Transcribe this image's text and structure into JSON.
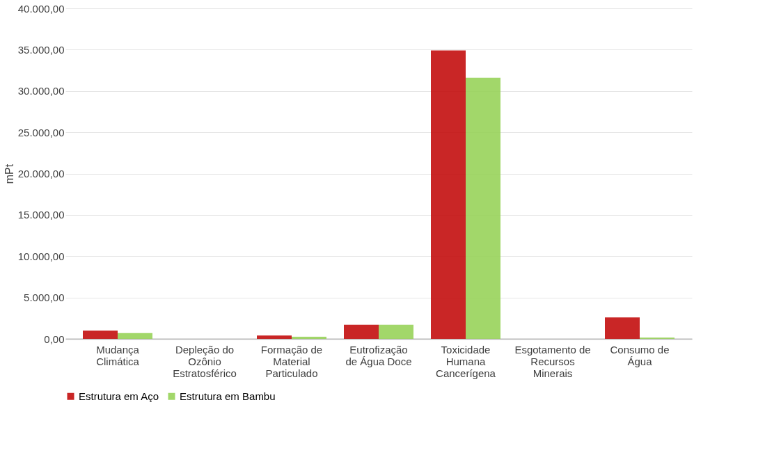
{
  "chart_data": {
    "type": "bar",
    "ylabel": "mPt",
    "categories": [
      "Mudança Climática",
      "Depleção do Ozônio Estratosférico",
      "Formação de Material Particulado",
      "Eutrofização de Água Doce",
      "Toxicidade Humana Cancerígena",
      "Esgotamento de Recursos Minerais",
      "Consumo de Água"
    ],
    "series": [
      {
        "name": "Estrutura em Aço",
        "color": "#c00000",
        "values": [
          1000,
          0,
          400,
          1700,
          34900,
          0,
          2600
        ]
      },
      {
        "name": "Estrutura em Bambu",
        "color": "#92d050",
        "values": [
          700,
          0,
          250,
          1700,
          31600,
          0,
          150
        ]
      }
    ],
    "ylim": [
      0,
      40000
    ],
    "yticks": [
      {
        "value": 0,
        "label": "0,00"
      },
      {
        "value": 5000,
        "label": "5.000,00"
      },
      {
        "value": 10000,
        "label": "10.000,00"
      },
      {
        "value": 15000,
        "label": "15.000,00"
      },
      {
        "value": 20000,
        "label": "20.000,00"
      },
      {
        "value": 25000,
        "label": "25.000,00"
      },
      {
        "value": 30000,
        "label": "30.000,00"
      },
      {
        "value": 35000,
        "label": "35.000,00"
      },
      {
        "value": 40000,
        "label": "40.000,00"
      }
    ],
    "grid": "y",
    "legend": "bottom"
  }
}
